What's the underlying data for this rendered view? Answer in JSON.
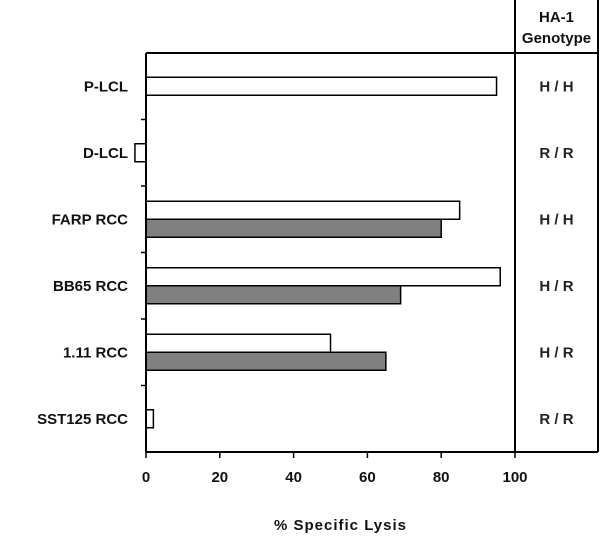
{
  "chart_data": {
    "type": "bar",
    "orientation": "horizontal",
    "categories": [
      "P-LCL",
      "D-LCL",
      "FARP RCC",
      "BB65 RCC",
      "1.11 RCC",
      "SST125 RCC"
    ],
    "series": [
      {
        "values": [
          95,
          -3,
          85,
          96,
          50,
          2
        ],
        "color": "#ffffff"
      },
      {
        "values": [
          null,
          null,
          80,
          69,
          65,
          null
        ],
        "color": "#808080"
      }
    ],
    "xlabel": "% Specific Lysis",
    "xlim": [
      0,
      100
    ],
    "xticks": [
      "0",
      "20",
      "40",
      "60",
      "80",
      "100"
    ],
    "side_panel": {
      "title_line1": "HA-1",
      "title_line2": "Genotype",
      "values": [
        "H / H",
        "R / R",
        "H / H",
        "H / R",
        "H / R",
        "R / R"
      ]
    }
  }
}
